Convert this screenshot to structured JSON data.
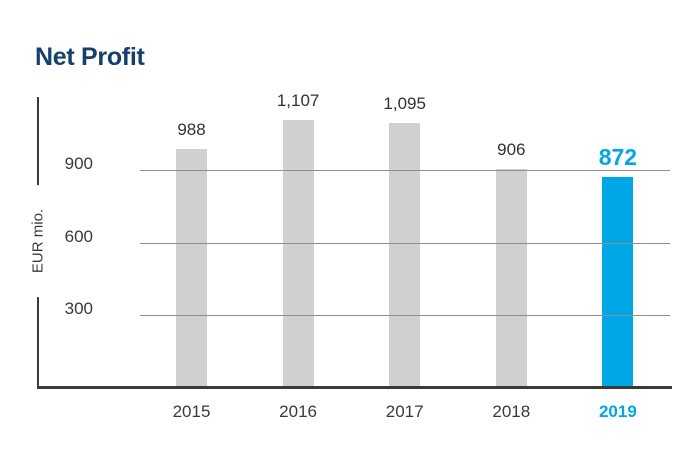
{
  "chart_data": {
    "type": "bar",
    "title": "Net Profit",
    "ylabel": "EUR mio.",
    "xlabel": "",
    "categories": [
      "2015",
      "2016",
      "2017",
      "2018",
      "2019"
    ],
    "values": [
      988,
      1107,
      1095,
      906,
      872
    ],
    "value_labels": [
      "988",
      "1,107",
      "1,095",
      "906",
      "872"
    ],
    "yticks": [
      300,
      600,
      900
    ],
    "ytick_labels": [
      "300",
      "600",
      "900"
    ],
    "ylim": [
      0,
      1200
    ],
    "grid": "horizontal",
    "legend": "none",
    "highlight_index": 4,
    "colors": {
      "title": "#15406E",
      "bar": "#D0D0D1",
      "highlight": "#00A7E7",
      "highlight_text": "#00A7E7",
      "gridline": "#8F8F91",
      "axis": "#3A3A3C",
      "value_label": "#323234",
      "tick_label": "#3A3A3C"
    }
  }
}
